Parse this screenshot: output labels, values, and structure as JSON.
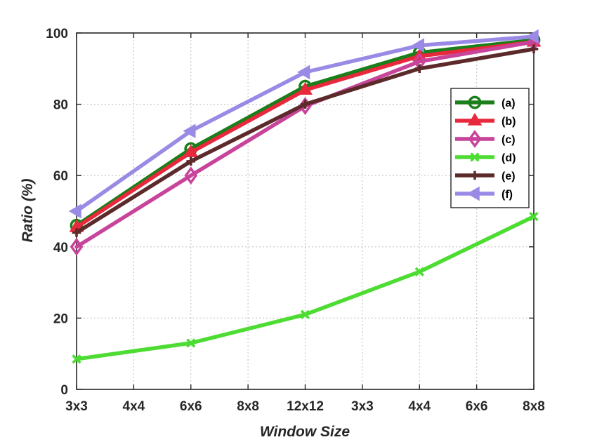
{
  "chart_data": {
    "type": "line",
    "title": "",
    "xlabel": "Window Size",
    "ylabel": "Ratio (%)",
    "categories": [
      "3x3",
      "4x4",
      "6x6",
      "8x8",
      "12x12",
      "3x3",
      "4x4",
      "6x6",
      "8x8"
    ],
    "x": [
      1,
      3,
      5,
      7,
      9
    ],
    "ylim": [
      0,
      100
    ],
    "yticks": [
      0,
      20,
      40,
      60,
      80,
      100
    ],
    "grid": true,
    "legend_position": "right",
    "series": [
      {
        "name": "(a)",
        "color": "#1a7f1a",
        "marker": "circle",
        "values": [
          46,
          67.5,
          85,
          94.5,
          98
        ]
      },
      {
        "name": "(b)",
        "color": "#e8283c",
        "marker": "triangle-up",
        "values": [
          45.5,
          66.5,
          84,
          93.5,
          97.5
        ]
      },
      {
        "name": "(c)",
        "color": "#c8449a",
        "marker": "diamond",
        "values": [
          40,
          60,
          79.5,
          92,
          97.5
        ]
      },
      {
        "name": "(d)",
        "color": "#4cdc32",
        "marker": "x",
        "values": [
          8.5,
          13,
          21,
          33,
          48.5
        ]
      },
      {
        "name": "(e)",
        "color": "#5c2a2a",
        "marker": "plus",
        "values": [
          44,
          64,
          80,
          90,
          95.5
        ]
      },
      {
        "name": "(f)",
        "color": "#9a8ae6",
        "marker": "triangle-left",
        "values": [
          50,
          72.5,
          89,
          96.5,
          99
        ]
      }
    ]
  }
}
